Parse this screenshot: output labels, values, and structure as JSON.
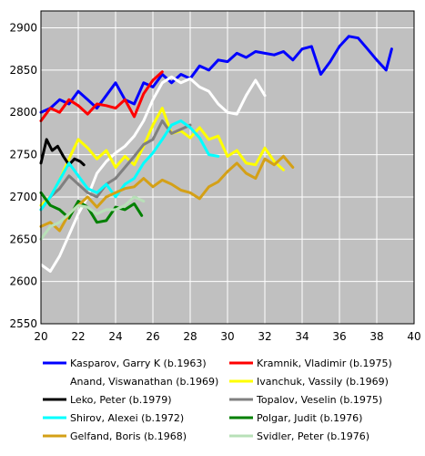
{
  "chart_data": {
    "type": "line",
    "title": "",
    "xlabel": "",
    "ylabel": "",
    "xlim": [
      20,
      40
    ],
    "ylim": [
      2550,
      2920
    ],
    "xticks": [
      20,
      22,
      24,
      26,
      28,
      30,
      32,
      34,
      36,
      38,
      40
    ],
    "yticks": [
      2550,
      2600,
      2650,
      2700,
      2750,
      2800,
      2850,
      2900
    ],
    "grid": true,
    "plot_background": "#c0c0c0",
    "legend_position": "bottom",
    "series": [
      {
        "name": "Kasparov, Garry K (b.1963)",
        "color": "#0000ff",
        "x": [
          20,
          20.5,
          21,
          21.5,
          22,
          22.5,
          23,
          23.5,
          24,
          24.5,
          25,
          25.5,
          26,
          26.5,
          27,
          27.5,
          28,
          28.5,
          29,
          29.5,
          30,
          30.5,
          31,
          31.5,
          32,
          32.5,
          33,
          33.5,
          34,
          34.5,
          35,
          35.5,
          36,
          36.5,
          37,
          37.5,
          38,
          38.5,
          38.8
        ],
        "y": [
          2800,
          2805,
          2815,
          2810,
          2825,
          2815,
          2805,
          2820,
          2835,
          2815,
          2810,
          2835,
          2830,
          2845,
          2835,
          2845,
          2840,
          2855,
          2850,
          2862,
          2860,
          2870,
          2865,
          2872,
          2870,
          2868,
          2872,
          2862,
          2875,
          2878,
          2845,
          2860,
          2878,
          2890,
          2888,
          2875,
          2862,
          2850,
          2875
        ]
      },
      {
        "name": "Kramnik, Vladimir (b.1975)",
        "color": "#ff0000",
        "x": [
          20,
          20.5,
          21,
          21.5,
          22,
          22.5,
          23,
          23.5,
          24,
          24.5,
          25,
          25.5,
          26,
          26.5
        ],
        "y": [
          2790,
          2805,
          2800,
          2815,
          2808,
          2798,
          2810,
          2808,
          2805,
          2815,
          2795,
          2822,
          2838,
          2848
        ]
      },
      {
        "name": "Anand, Viswanathan (b.1969)",
        "color": "#ffffff",
        "x": [
          20,
          20.5,
          21,
          21.5,
          22,
          22.5,
          23,
          23.5,
          24,
          24.5,
          25,
          25.5,
          26,
          26.5,
          27,
          27.5,
          28,
          28.5,
          29,
          29.5,
          30,
          30.5,
          31,
          31.5,
          32
        ],
        "y": [
          2620,
          2612,
          2630,
          2655,
          2680,
          2700,
          2728,
          2742,
          2752,
          2760,
          2772,
          2790,
          2815,
          2835,
          2842,
          2835,
          2840,
          2830,
          2825,
          2810,
          2800,
          2798,
          2820,
          2838,
          2820
        ]
      },
      {
        "name": "Ivanchuk, Vassily (b.1969)",
        "color": "#ffff00",
        "x": [
          20,
          20.5,
          21,
          21.5,
          22,
          22.5,
          23,
          23.5,
          24,
          24.5,
          25,
          25.5,
          26,
          26.5,
          27,
          27.5,
          28,
          28.5,
          29,
          29.5,
          30,
          30.5,
          31,
          31.5,
          32,
          32.5,
          33
        ],
        "y": [
          2690,
          2700,
          2720,
          2745,
          2768,
          2758,
          2745,
          2755,
          2735,
          2748,
          2738,
          2760,
          2785,
          2805,
          2775,
          2778,
          2770,
          2782,
          2768,
          2772,
          2748,
          2755,
          2740,
          2738,
          2758,
          2742,
          2732
        ]
      },
      {
        "name": "Leko, Peter (b.1979)",
        "color": "#000000",
        "x": [
          20,
          20.3,
          20.6,
          20.9,
          21.2,
          21.5,
          21.8,
          22.1,
          22.3
        ],
        "y": [
          2740,
          2768,
          2755,
          2760,
          2748,
          2738,
          2745,
          2742,
          2738
        ]
      },
      {
        "name": "Topalov, Veselin (b.1975)",
        "color": "#808080",
        "x": [
          20,
          20.5,
          21,
          21.5,
          22,
          22.5,
          23,
          23.5,
          24,
          24.5,
          25,
          25.5,
          26,
          26.5,
          27,
          27.5,
          28
        ],
        "y": [
          2685,
          2700,
          2710,
          2725,
          2715,
          2705,
          2700,
          2715,
          2722,
          2735,
          2748,
          2762,
          2768,
          2790,
          2775,
          2780,
          2785
        ]
      },
      {
        "name": "Shirov, Alexei (b.1972)",
        "color": "#00ffff",
        "x": [
          20,
          20.5,
          21,
          21.5,
          22,
          22.5,
          23,
          23.5,
          24,
          24.5,
          25,
          25.5,
          26,
          26.5,
          27,
          27.5,
          28,
          28.5,
          29,
          29.5
        ],
        "y": [
          2685,
          2700,
          2720,
          2740,
          2725,
          2710,
          2705,
          2715,
          2700,
          2715,
          2722,
          2740,
          2752,
          2768,
          2785,
          2790,
          2782,
          2770,
          2750,
          2748
        ]
      },
      {
        "name": "Polgar, Judit (b.1976)",
        "color": "#008000",
        "x": [
          20,
          20.5,
          21,
          21.5,
          22,
          22.5,
          23,
          23.5,
          24,
          24.5,
          25,
          25.4
        ],
        "y": [
          2705,
          2690,
          2685,
          2675,
          2695,
          2688,
          2670,
          2672,
          2688,
          2685,
          2692,
          2678
        ]
      },
      {
        "name": "Gelfand, Boris (b.1968)",
        "color": "#d4a017",
        "x": [
          20,
          20.5,
          21,
          21.5,
          22,
          22.5,
          23,
          23.5,
          24,
          24.5,
          25,
          25.5,
          26,
          26.5,
          27,
          27.5,
          28,
          28.5,
          29,
          29.5,
          30,
          30.5,
          31,
          31.5,
          32,
          32.5,
          33,
          33.5
        ],
        "y": [
          2665,
          2670,
          2660,
          2680,
          2690,
          2700,
          2688,
          2700,
          2705,
          2710,
          2712,
          2722,
          2712,
          2720,
          2715,
          2708,
          2705,
          2698,
          2712,
          2718,
          2730,
          2740,
          2728,
          2722,
          2745,
          2738,
          2748,
          2735
        ]
      },
      {
        "name": "Svidler, Peter (b.1976)",
        "color": "#b8e0b8",
        "x": [
          20,
          20.5,
          21,
          21.5,
          22,
          22.5,
          23,
          23.5,
          24,
          24.5,
          25,
          25.5
        ],
        "y": [
          2650,
          2665,
          2670,
          2680,
          2690,
          2688,
          2680,
          2685,
          2685,
          2690,
          2700,
          2695
        ]
      }
    ]
  }
}
